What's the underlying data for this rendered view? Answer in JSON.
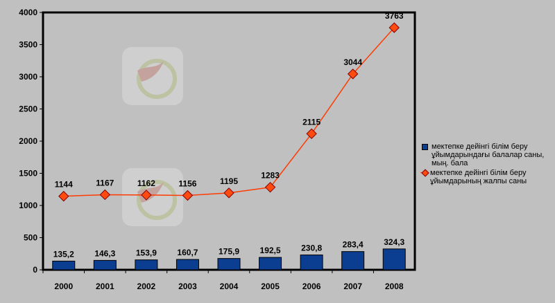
{
  "chart_data": {
    "type": "bar",
    "categories": [
      "2000",
      "2001",
      "2002",
      "2003",
      "2004",
      "2005",
      "2006",
      "2007",
      "2008"
    ],
    "ylim": [
      0,
      4000
    ],
    "yticks": [
      "0",
      "500",
      "1000",
      "1500",
      "2000",
      "2500",
      "3000",
      "3500",
      "4000"
    ],
    "grid": false,
    "legend_position": "right",
    "series": [
      {
        "name": "мектепке дейінгі білім беру ұйымдарындағы балалар саны, мың. бала",
        "kind": "bar",
        "color": "#0b3d91",
        "values": [
          135.2,
          146.3,
          153.9,
          160.7,
          175.9,
          192.5,
          230.8,
          283.4,
          324.3
        ],
        "labels": [
          "135,2",
          "146,3",
          "153,9",
          "160,7",
          "175,9",
          "192,5",
          "230,8",
          "283,4",
          "324,3"
        ]
      },
      {
        "name": "мектепке дейінгі білім беру ұйымдарының жалпы саны",
        "kind": "line",
        "color": "#ff4b10",
        "values": [
          1144,
          1167,
          1162,
          1156,
          1195,
          1283,
          2115,
          3044,
          3763
        ],
        "labels": [
          "1144",
          "1167",
          "1162",
          "1156",
          "1195",
          "1283",
          "2115",
          "3044",
          "3763"
        ]
      }
    ]
  }
}
